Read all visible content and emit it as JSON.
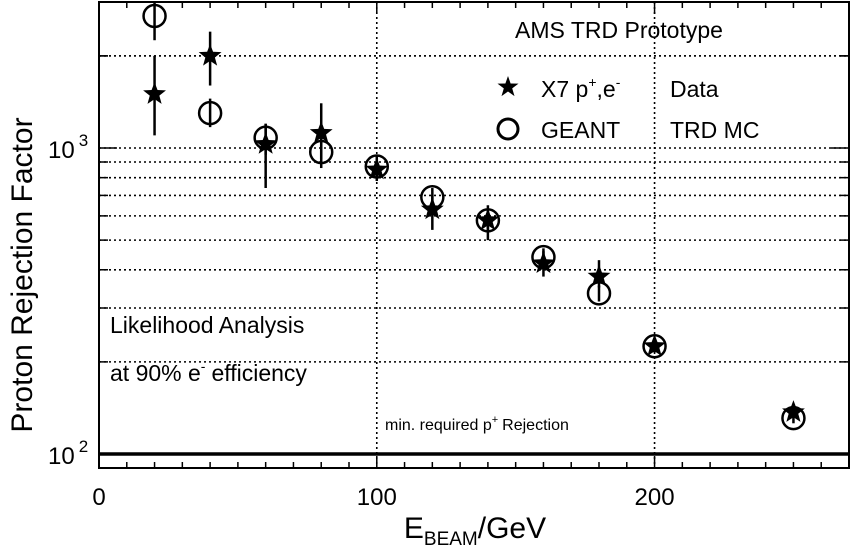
{
  "chart_data": {
    "type": "scatter",
    "title": "",
    "ylabel": "Proton Rejection Factor",
    "xlabel_main": "E",
    "xlabel_sub": "BEAM",
    "xlabel_unit": "/GeV",
    "xlim": [
      0,
      270
    ],
    "ylim": [
      90,
      3000
    ],
    "y_scale": "log",
    "x_ticks": [
      {
        "value": 0,
        "label": "0"
      },
      {
        "value": 100,
        "label": "100"
      },
      {
        "value": 200,
        "label": "200"
      }
    ],
    "y_ticks": [
      {
        "value": 100,
        "base": "10",
        "exp": "2"
      },
      {
        "value": 1000,
        "base": "10",
        "exp": "3"
      }
    ],
    "grid": true,
    "annotations": {
      "prototype": "AMS TRD Prototype",
      "legend_data_pre": "X7 p",
      "legend_data_sup1": "+",
      "legend_data_mid": ",e",
      "legend_data_sup2": "-",
      "legend_data_post": "Data",
      "legend_mc_pre": "GEANT",
      "legend_mc_post": "TRD MC",
      "analysis_line1": "Likelihood Analysis",
      "analysis_line2_pre": "at 90% e",
      "analysis_line2_sup": "-",
      "analysis_line2_post": "efficiency",
      "min_req_pre": "min. required p",
      "min_req_sup": "+",
      "min_req_post": "Rejection"
    },
    "reference_line": 100,
    "series": [
      {
        "marker": "star",
        "points": [
          {
            "x": 20,
            "y": 1500,
            "lo": 1100,
            "hi": 2000
          },
          {
            "x": 40,
            "y": 2000,
            "lo": 1600,
            "hi": 2400
          },
          {
            "x": 60,
            "y": 1030,
            "lo": 740,
            "hi": 1200
          },
          {
            "x": 80,
            "y": 1120,
            "lo": 920,
            "hi": 1400
          },
          {
            "x": 100,
            "y": 850,
            "lo": 780,
            "hi": 920
          },
          {
            "x": 120,
            "y": 630,
            "lo": 540,
            "hi": 700
          },
          {
            "x": 140,
            "y": 580,
            "lo": 500,
            "hi": 650
          },
          {
            "x": 160,
            "y": 420,
            "lo": 380,
            "hi": 460
          },
          {
            "x": 180,
            "y": 380,
            "lo": 350,
            "hi": 430
          },
          {
            "x": 200,
            "y": 225,
            "lo": 215,
            "hi": 235
          },
          {
            "x": 250,
            "y": 137,
            "lo": 132,
            "hi": 142
          }
        ]
      },
      {
        "marker": "circle",
        "points": [
          {
            "x": 20,
            "y": 2700,
            "lo": 2250,
            "hi": 3000
          },
          {
            "x": 40,
            "y": 1300,
            "lo": 1170,
            "hi": 1450
          },
          {
            "x": 60,
            "y": 1080,
            "lo": 950,
            "hi": 1200
          },
          {
            "x": 80,
            "y": 970,
            "lo": 860,
            "hi": 1080
          },
          {
            "x": 100,
            "y": 870,
            "lo": 800,
            "hi": 940
          },
          {
            "x": 120,
            "y": 690,
            "lo": 640,
            "hi": 740
          },
          {
            "x": 140,
            "y": 580,
            "lo": 540,
            "hi": 620
          },
          {
            "x": 160,
            "y": 440,
            "lo": 410,
            "hi": 470
          },
          {
            "x": 180,
            "y": 335,
            "lo": 315,
            "hi": 355
          },
          {
            "x": 200,
            "y": 225,
            "lo": 215,
            "hi": 235
          },
          {
            "x": 250,
            "y": 131,
            "lo": 126,
            "hi": 136
          }
        ]
      }
    ]
  }
}
